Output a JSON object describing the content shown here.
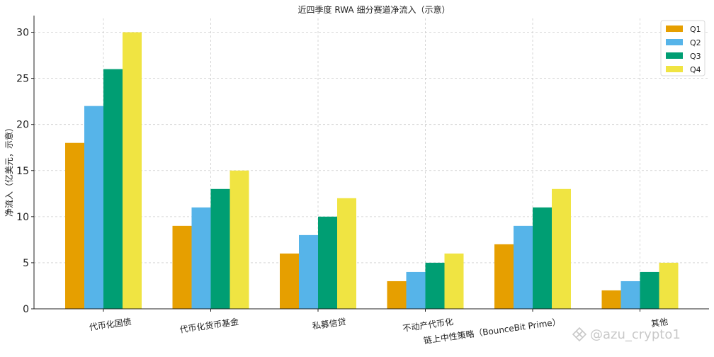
{
  "chart_data": {
    "type": "bar",
    "title": "近四季度 RWA 细分赛道净流入（示意）",
    "xlabel": "",
    "ylabel": "净流入（亿美元，示意）",
    "categories": [
      "代币化国债",
      "代币化货币基金",
      "私募信贷",
      "不动产代币化",
      "链上中性策略（BounceBit Prime）",
      "其他"
    ],
    "series": [
      {
        "name": "Q1",
        "color": "#E69F00",
        "values": [
          18,
          9,
          6,
          3,
          7,
          2
        ]
      },
      {
        "name": "Q2",
        "color": "#56B4E9",
        "values": [
          22,
          11,
          8,
          4,
          9,
          3
        ]
      },
      {
        "name": "Q3",
        "color": "#009E73",
        "values": [
          26,
          13,
          10,
          5,
          11,
          4
        ]
      },
      {
        "name": "Q4",
        "color": "#F0E442",
        "values": [
          30,
          15,
          12,
          6,
          13,
          5
        ]
      }
    ],
    "ylim": [
      0,
      31.5
    ],
    "yticks": [
      0,
      5,
      10,
      15,
      20,
      25,
      30
    ],
    "grid": true,
    "legend_position": "top-right"
  },
  "watermark": {
    "text": "@azu_crypto1"
  }
}
